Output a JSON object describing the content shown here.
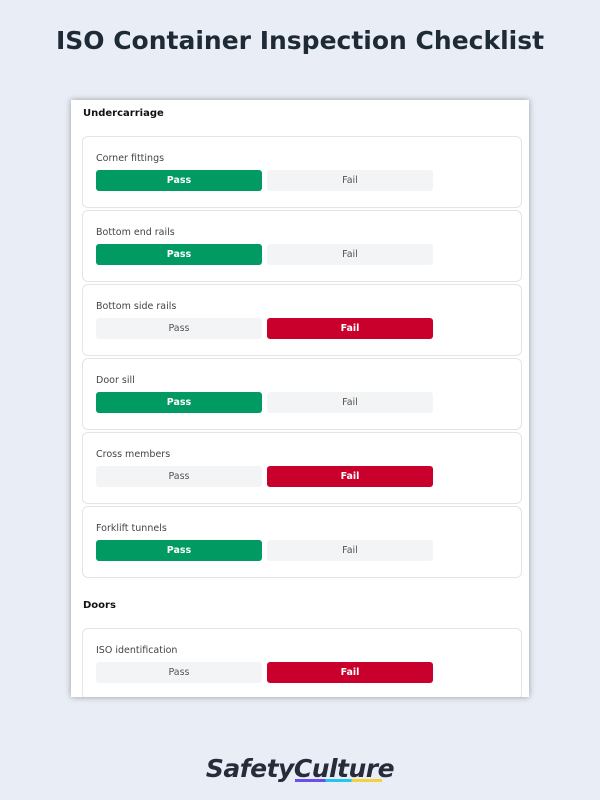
{
  "title": "ISO Container Inspection Checklist",
  "sections": [
    {
      "name": "Undercarriage",
      "items": [
        {
          "label": "Corner fittings",
          "pass": "Pass",
          "fail": "Fail",
          "selected": "pass"
        },
        {
          "label": "Bottom end rails",
          "pass": "Pass",
          "fail": "Fail",
          "selected": "pass"
        },
        {
          "label": "Bottom side rails",
          "pass": "Pass",
          "fail": "Fail",
          "selected": "fail"
        },
        {
          "label": "Door sill",
          "pass": "Pass",
          "fail": "Fail",
          "selected": "pass"
        },
        {
          "label": "Cross members",
          "pass": "Pass",
          "fail": "Fail",
          "selected": "fail"
        },
        {
          "label": "Forklift tunnels",
          "pass": "Pass",
          "fail": "Fail",
          "selected": "pass"
        }
      ]
    },
    {
      "name": "Doors",
      "items": [
        {
          "label": "ISO identification",
          "pass": "Pass",
          "fail": "Fail",
          "selected": "fail"
        }
      ]
    }
  ],
  "colors": {
    "pass": "#019a63",
    "fail": "#c8002b"
  },
  "brand": "SafetyCulture"
}
